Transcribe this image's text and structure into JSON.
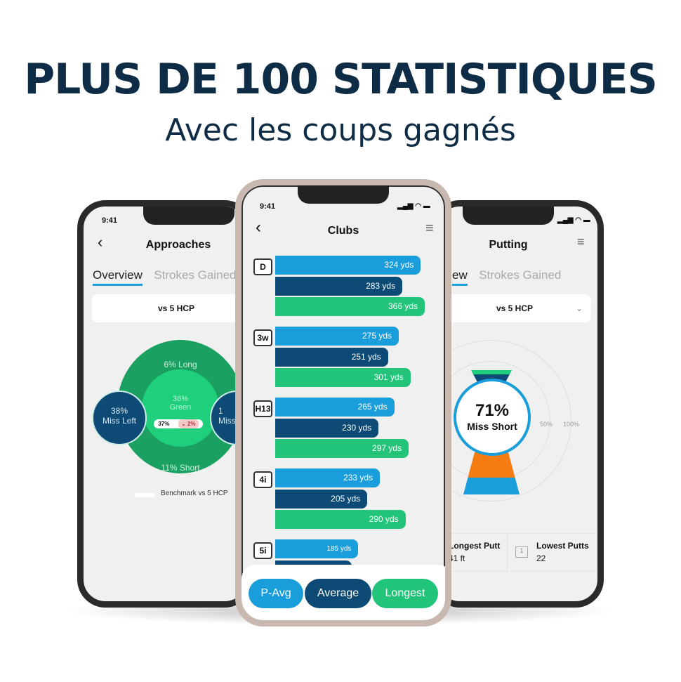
{
  "headline": "PLUS DE 100 STATISTIQUES",
  "subheadline": "Avec les coups gagnés",
  "colors": {
    "navy": "#0e2c45",
    "p_avg": "#1a9ddb",
    "average": "#0d4a75",
    "longest": "#22c47a",
    "dark_green": "#1aa060",
    "light_green": "#1fcf7c",
    "orange": "#f57c12"
  },
  "left_phone": {
    "time": "9:41",
    "title": "Approaches",
    "back_icon": "chevron-left-icon",
    "tabs": [
      "Overview",
      "Strokes Gained"
    ],
    "compare": "vs 5 HCP",
    "long": "6% Long",
    "green_pct": "36%",
    "green_label": "Green",
    "short": "11% Short",
    "miss_left_pct": "38%",
    "miss_left_label": "Miss Left",
    "miss_right_pct": "1",
    "miss_right_label": "Miss",
    "pill_value": "37%",
    "pill_delta": "2%",
    "legend": "Benchmark vs 5 HCP"
  },
  "center_phone": {
    "time": "9:41",
    "title": "Clubs",
    "filter_icon": "filter-icon",
    "clubs": [
      {
        "name": "D",
        "p_avg": "324 yds",
        "average": "283 yds",
        "longest": "366 yds",
        "v": [
          324,
          283,
          366
        ]
      },
      {
        "name": "3w",
        "p_avg": "275 yds",
        "average": "251 yds",
        "longest": "301 yds",
        "v": [
          275,
          251,
          301
        ]
      },
      {
        "name": "H13",
        "p_avg": "265 yds",
        "average": "230 yds",
        "longest": "297 yds",
        "v": [
          265,
          230,
          297
        ]
      },
      {
        "name": "4i",
        "p_avg": "233 yds",
        "average": "205 yds",
        "longest": "290 yds",
        "v": [
          233,
          205,
          290
        ]
      },
      {
        "name": "5i",
        "p_avg": "185 yds",
        "average": "",
        "longest": "",
        "v": [
          185,
          170,
          0
        ]
      }
    ],
    "toggles": [
      "P-Avg",
      "Average",
      "Longest"
    ]
  },
  "right_phone": {
    "title": "Putting",
    "filter_icon": "filter-icon",
    "tabs": [
      "ew",
      "Strokes Gained"
    ],
    "compare": "vs 5 HCP",
    "pct": "71%",
    "label": "Miss Short",
    "ring_labels": [
      "50%",
      "100%"
    ],
    "stats": [
      {
        "label": "Longest Putt",
        "value": "41 ft"
      },
      {
        "label": "Lowest Putts",
        "value": "22"
      }
    ]
  }
}
